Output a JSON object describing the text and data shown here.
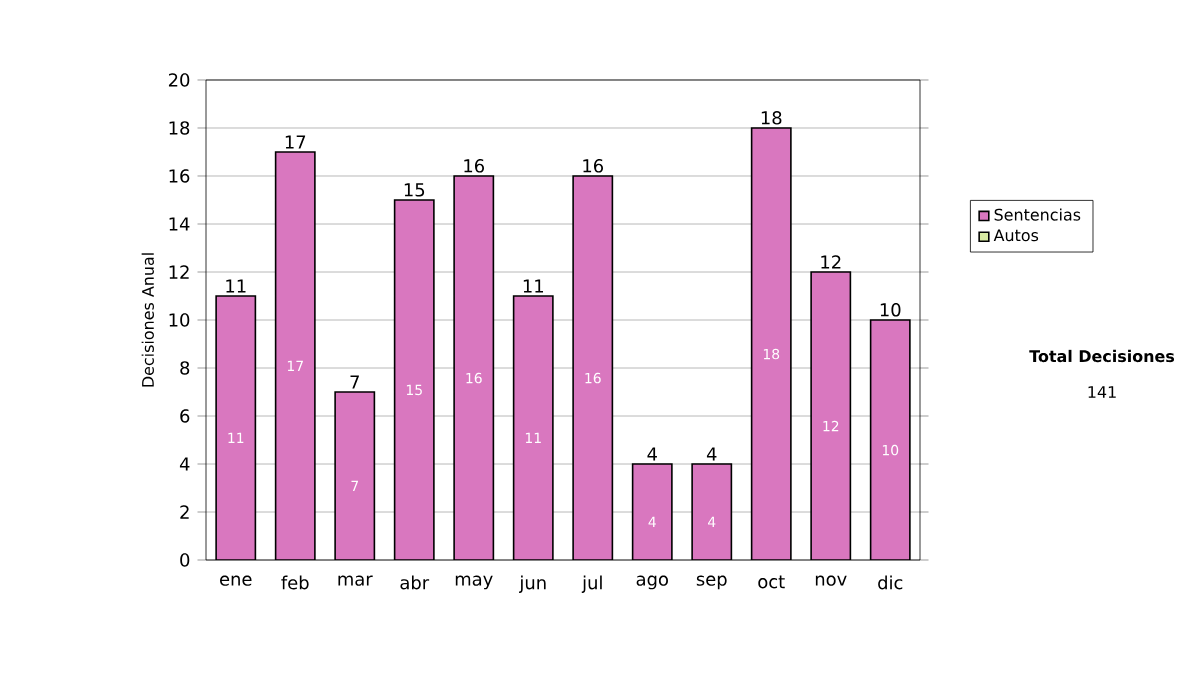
{
  "chart_data": {
    "type": "bar",
    "stacked": true,
    "categories": [
      "ene",
      "feb",
      "mar",
      "abr",
      "may",
      "jun",
      "jul",
      "ago",
      "sep",
      "oct",
      "nov",
      "dic"
    ],
    "series": [
      {
        "name": "Sentencias",
        "color": "#d977bf",
        "values": [
          11,
          17,
          7,
          15,
          16,
          11,
          16,
          4,
          4,
          18,
          12,
          10
        ],
        "value_labels": [
          "11",
          "17",
          "7",
          "15",
          "16",
          "11",
          "16",
          "4",
          "4",
          "18",
          "12",
          "10"
        ]
      },
      {
        "name": "Autos",
        "color": "#d8eaa2",
        "values": [
          0,
          0,
          0,
          0,
          0,
          0,
          0,
          0,
          0,
          0,
          0,
          0
        ]
      }
    ],
    "totals": [
      "11",
      "17",
      "7",
      "15",
      "16",
      "11",
      "16",
      "4",
      "4",
      "18",
      "12",
      "10"
    ],
    "ylabel": "Decisiones Anual",
    "ylim": [
      0,
      20
    ],
    "yticks": [
      0,
      2,
      4,
      6,
      8,
      10,
      12,
      14,
      16,
      18,
      20
    ],
    "grid": "y",
    "legend": "right",
    "annotations": [
      "**Total Decisiones**",
      "141"
    ]
  }
}
